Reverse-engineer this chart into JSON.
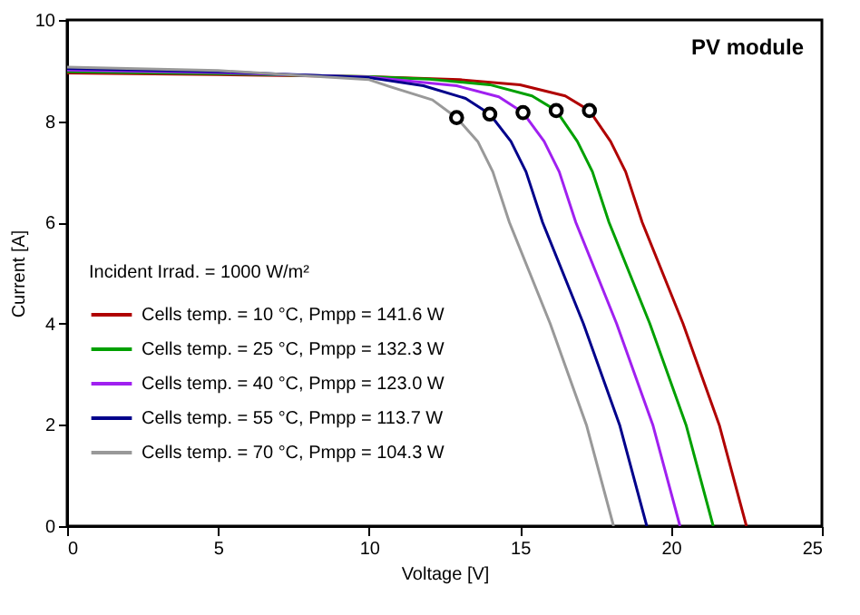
{
  "chart_data": {
    "type": "line",
    "title": "PV module",
    "xlabel": "Voltage [V]",
    "ylabel": "Current [A]",
    "annotations": [
      "Incident Irrad. = 1000 W/m²"
    ],
    "xlim": [
      0,
      25
    ],
    "ylim": [
      0,
      10
    ],
    "xticks": [
      0,
      5,
      10,
      15,
      20,
      25
    ],
    "yticks": [
      0,
      2,
      4,
      6,
      8,
      10
    ],
    "grid": false,
    "legend": "left",
    "line_style": "solid",
    "series": [
      {
        "name": "Cells temp. = 10 °C,  Pmpp = 141.6 W",
        "color": "#b00000",
        "x": [
          0,
          5,
          10,
          13,
          15,
          16.5,
          17.3,
          18,
          18.5,
          19.05,
          20.4,
          21.6,
          22.5
        ],
        "values": [
          8.95,
          8.92,
          8.88,
          8.82,
          8.72,
          8.5,
          8.21,
          7.6,
          7.0,
          6.0,
          4.0,
          2.0,
          0
        ]
      },
      {
        "name": "Cells temp. = 25 °C,  Pmpp = 132.3 W",
        "color": "#00a000",
        "x": [
          0,
          5,
          10,
          12,
          14,
          15.4,
          16.2,
          16.9,
          17.4,
          17.95,
          19.3,
          20.5,
          21.4
        ],
        "values": [
          8.98,
          8.94,
          8.88,
          8.83,
          8.72,
          8.5,
          8.21,
          7.6,
          7.0,
          6.0,
          4.0,
          2.0,
          0
        ]
      },
      {
        "name": "Cells temp. = 40 °C,  Pmpp = 123.0 W",
        "color": "#a020f0",
        "x": [
          0,
          5,
          10,
          12.9,
          14.3,
          15.1,
          15.8,
          16.3,
          16.85,
          18.2,
          19.4,
          20.3
        ],
        "values": [
          9.01,
          8.96,
          8.87,
          8.7,
          8.48,
          8.17,
          7.6,
          7.0,
          6.0,
          4.0,
          2.0,
          0
        ]
      },
      {
        "name": "Cells temp. = 55 °C,  Pmpp = 113.7 W",
        "color": "#00008b",
        "x": [
          0,
          5,
          10,
          11.8,
          13.2,
          14.0,
          14.7,
          15.2,
          15.75,
          17.1,
          18.3,
          19.2
        ],
        "values": [
          9.04,
          8.98,
          8.86,
          8.7,
          8.45,
          8.14,
          7.6,
          7.0,
          6.0,
          4.0,
          2.0,
          0
        ]
      },
      {
        "name": "Cells temp. = 70 °C,  Pmpp = 104.3 W",
        "color": "#999999",
        "x": [
          0,
          5,
          10,
          10.7,
          12.1,
          12.9,
          13.6,
          14.1,
          14.65,
          16.0,
          17.2,
          18.1
        ],
        "values": [
          9.07,
          9.0,
          8.82,
          8.68,
          8.42,
          8.07,
          7.6,
          7.0,
          6.0,
          4.0,
          2.0,
          0
        ]
      },
      {
        "type": "scatter",
        "marker": "circle",
        "color": "#000000",
        "x": [
          12.9,
          14.0,
          15.1,
          16.2,
          17.3
        ],
        "values": [
          8.07,
          8.14,
          8.17,
          8.21,
          8.21
        ]
      }
    ]
  }
}
